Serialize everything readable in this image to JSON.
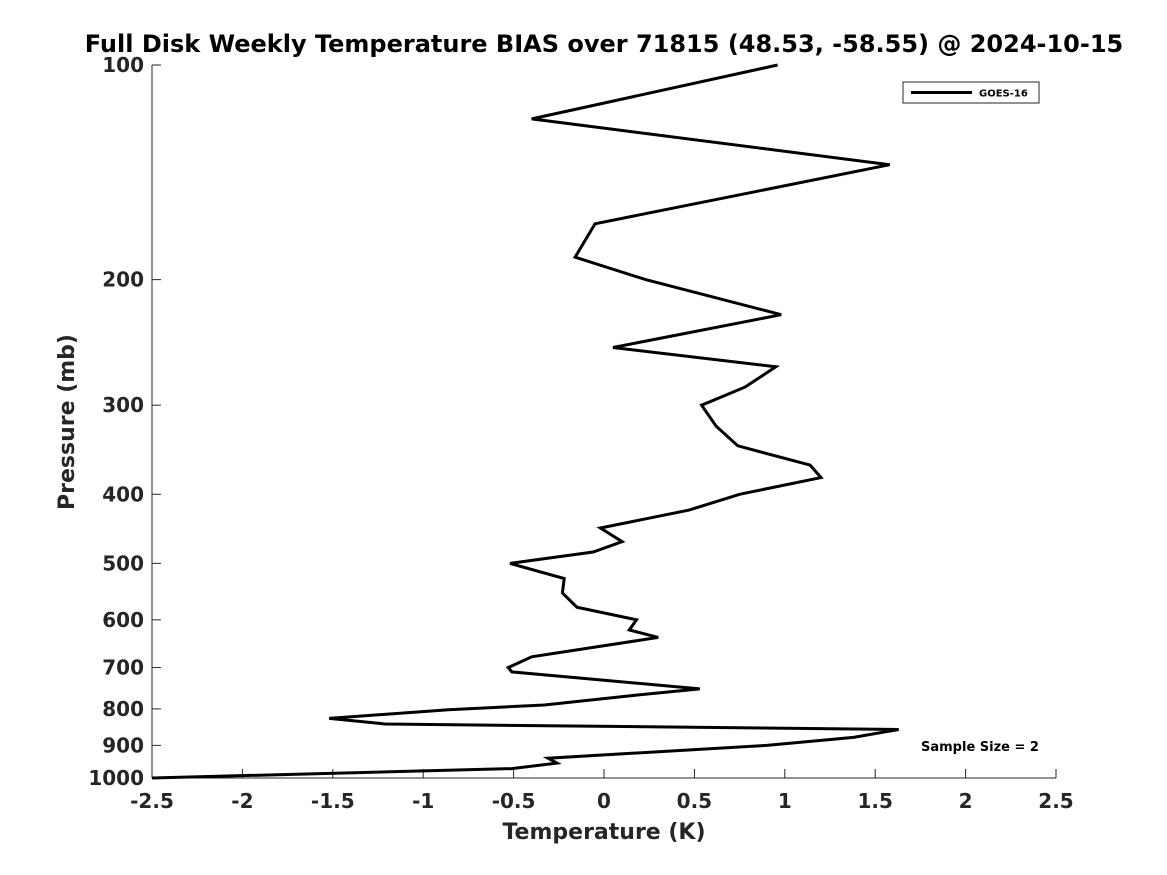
{
  "chart_data": {
    "type": "line",
    "title": "Full Disk Weekly Temperature BIAS over 71815 (48.53, -58.55) @ 2024-10-15",
    "xlabel": "Temperature (K)",
    "ylabel": "Pressure (mb)",
    "xlim": [
      -2.5,
      2.5
    ],
    "ylim": [
      100,
      1000
    ],
    "y_scale": "log",
    "y_reversed": true,
    "grid": false,
    "legend_position": "top-right",
    "x_ticks": [
      -2.5,
      -2,
      -1.5,
      -1,
      -0.5,
      0,
      0.5,
      1,
      1.5,
      2,
      2.5
    ],
    "x_tick_labels": [
      "-2.5",
      "-2",
      "-1.5",
      "-1",
      "-0.5",
      "0",
      "0.5",
      "1",
      "1.5",
      "2",
      "2.5"
    ],
    "y_ticks": [
      100,
      200,
      300,
      400,
      500,
      600,
      700,
      800,
      900,
      1000
    ],
    "y_tick_labels": [
      "100",
      "200",
      "300",
      "400",
      "500",
      "600",
      "700",
      "800",
      "900",
      "1000"
    ],
    "series": [
      {
        "name": "GOES-16",
        "color": "#000000",
        "points": [
          {
            "x": 0.96,
            "y": 100
          },
          {
            "x": -0.4,
            "y": 119
          },
          {
            "x": 1.58,
            "y": 138
          },
          {
            "x": -0.05,
            "y": 167
          },
          {
            "x": -0.16,
            "y": 186
          },
          {
            "x": 0.23,
            "y": 200
          },
          {
            "x": 0.98,
            "y": 224
          },
          {
            "x": 0.05,
            "y": 249
          },
          {
            "x": 0.95,
            "y": 265
          },
          {
            "x": 0.78,
            "y": 283
          },
          {
            "x": 0.54,
            "y": 300
          },
          {
            "x": 0.62,
            "y": 321
          },
          {
            "x": 0.74,
            "y": 342
          },
          {
            "x": 1.14,
            "y": 364
          },
          {
            "x": 1.2,
            "y": 379
          },
          {
            "x": 0.75,
            "y": 400
          },
          {
            "x": 0.47,
            "y": 421
          },
          {
            "x": -0.02,
            "y": 446
          },
          {
            "x": 0.1,
            "y": 466
          },
          {
            "x": -0.06,
            "y": 482
          },
          {
            "x": -0.52,
            "y": 500
          },
          {
            "x": -0.22,
            "y": 525
          },
          {
            "x": -0.23,
            "y": 550
          },
          {
            "x": -0.15,
            "y": 576
          },
          {
            "x": 0.18,
            "y": 600
          },
          {
            "x": 0.14,
            "y": 620
          },
          {
            "x": 0.3,
            "y": 635
          },
          {
            "x": -0.4,
            "y": 676
          },
          {
            "x": -0.53,
            "y": 700
          },
          {
            "x": -0.51,
            "y": 710
          },
          {
            "x": 0.53,
            "y": 750
          },
          {
            "x": 0.16,
            "y": 766
          },
          {
            "x": -0.33,
            "y": 790
          },
          {
            "x": -0.86,
            "y": 802
          },
          {
            "x": -1.52,
            "y": 825
          },
          {
            "x": -1.21,
            "y": 840
          },
          {
            "x": 1.63,
            "y": 855
          },
          {
            "x": 1.38,
            "y": 877
          },
          {
            "x": 0.9,
            "y": 900
          },
          {
            "x": -0.31,
            "y": 938
          },
          {
            "x": -0.26,
            "y": 953
          },
          {
            "x": -0.51,
            "y": 970
          },
          {
            "x": -2.5,
            "y": 1000
          }
        ]
      }
    ],
    "annotations": [
      {
        "text": "Sample Size = 2"
      }
    ]
  }
}
